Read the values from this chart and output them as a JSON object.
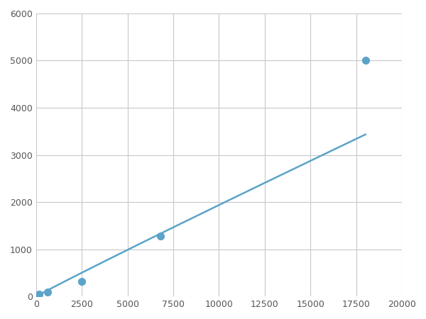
{
  "x_points": [
    156,
    625,
    2500,
    6800,
    18000
  ],
  "y_points": [
    50,
    100,
    320,
    1280,
    5000
  ],
  "line_color": "#5ba3c9",
  "marker_color": "#5ba3c9",
  "marker_size": 7,
  "line_width": 1.8,
  "xlim": [
    0,
    20000
  ],
  "ylim": [
    0,
    6000
  ],
  "xticks": [
    0,
    2500,
    5000,
    7500,
    10000,
    12500,
    15000,
    17500,
    20000
  ],
  "yticks": [
    0,
    1000,
    2000,
    3000,
    4000,
    5000,
    6000
  ],
  "grid_color": "#c8c8c8",
  "background_color": "#ffffff",
  "figsize": [
    6.0,
    4.5
  ],
  "dpi": 100
}
